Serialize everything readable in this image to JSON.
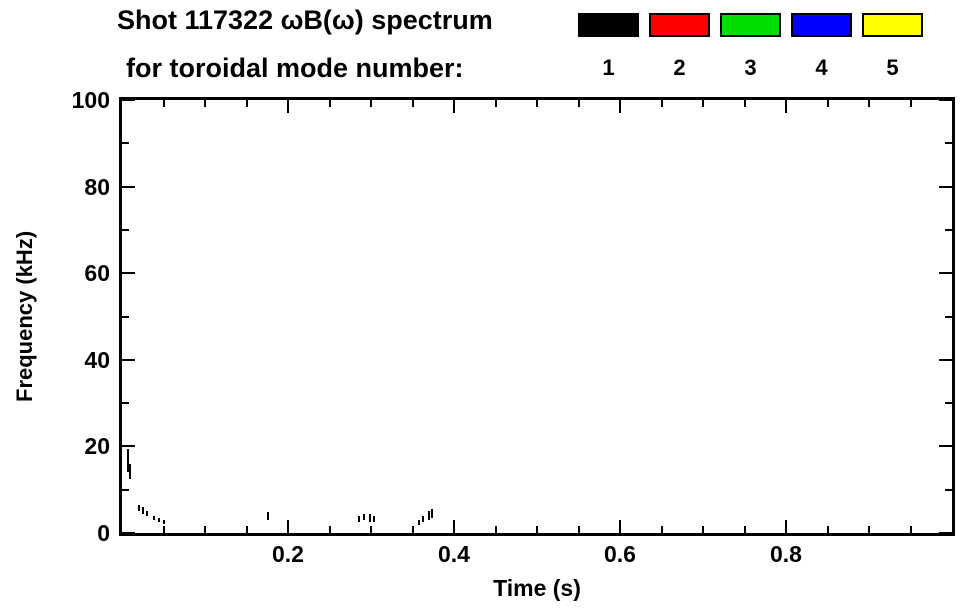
{
  "title": {
    "line1": "Shot 117322 ωB(ω) spectrum",
    "line2": "for toroidal mode number:"
  },
  "legend": {
    "items": [
      {
        "label": "1",
        "color": "#000000"
      },
      {
        "label": "2",
        "color": "#ff0000"
      },
      {
        "label": "3",
        "color": "#00dd00"
      },
      {
        "label": "4",
        "color": "#0000ff"
      },
      {
        "label": "5",
        "color": "#ffff00"
      }
    ]
  },
  "chart_data": {
    "type": "scatter",
    "title": "Shot 117322 ωB(ω) spectrum",
    "subtitle": "for toroidal mode number:",
    "xlabel": "Time (s)",
    "ylabel": "Frequency (kHz)",
    "xlim": [
      0,
      1.0
    ],
    "ylim": [
      0,
      100
    ],
    "x_major_ticks": [
      0.2,
      0.4,
      0.6,
      0.8
    ],
    "x_tick_labels": [
      "0.2",
      "0.4",
      "0.6",
      "0.8"
    ],
    "x_minor_step": 0.05,
    "y_major_ticks": [
      0,
      20,
      40,
      60,
      80,
      100
    ],
    "y_tick_labels": [
      "0",
      "20",
      "40",
      "60",
      "80",
      "100"
    ],
    "y_minor_step": 10,
    "grid": false,
    "legend_position": "top-right",
    "axis_color": "#000000",
    "background": "#ffffff",
    "series": [
      {
        "name": "mode 1",
        "mode": "1",
        "color": "#000000",
        "segments": [
          {
            "t": 0.007,
            "f_low": 14.0,
            "f_high": 19.5
          },
          {
            "t": 0.01,
            "f_low": 12.5,
            "f_high": 16.0
          },
          {
            "t": 0.021,
            "f_low": 5.0,
            "f_high": 6.5
          },
          {
            "t": 0.025,
            "f_low": 4.5,
            "f_high": 6.0
          },
          {
            "t": 0.03,
            "f_low": 4.0,
            "f_high": 5.0
          },
          {
            "t": 0.038,
            "f_low": 3.0,
            "f_high": 4.0
          },
          {
            "t": 0.044,
            "f_low": 2.5,
            "f_high": 3.5
          },
          {
            "t": 0.051,
            "f_low": 2.0,
            "f_high": 3.0
          },
          {
            "t": 0.176,
            "f_low": 3.0,
            "f_high": 4.8
          },
          {
            "t": 0.286,
            "f_low": 2.5,
            "f_high": 4.0
          },
          {
            "t": 0.291,
            "f_low": 3.0,
            "f_high": 4.5
          },
          {
            "t": 0.299,
            "f_low": 2.5,
            "f_high": 4.5
          },
          {
            "t": 0.304,
            "f_low": 2.5,
            "f_high": 4.0
          },
          {
            "t": 0.358,
            "f_low": 1.8,
            "f_high": 3.0
          },
          {
            "t": 0.363,
            "f_low": 2.5,
            "f_high": 4.0
          },
          {
            "t": 0.37,
            "f_low": 3.0,
            "f_high": 5.0
          },
          {
            "t": 0.374,
            "f_low": 3.5,
            "f_high": 5.5
          }
        ]
      },
      {
        "name": "mode 2",
        "mode": "2",
        "color": "#ff0000",
        "segments": []
      },
      {
        "name": "mode 3",
        "mode": "3",
        "color": "#00dd00",
        "segments": []
      },
      {
        "name": "mode 4",
        "mode": "4",
        "color": "#0000ff",
        "segments": []
      },
      {
        "name": "mode 5",
        "mode": "5",
        "color": "#ffff00",
        "segments": []
      }
    ]
  }
}
